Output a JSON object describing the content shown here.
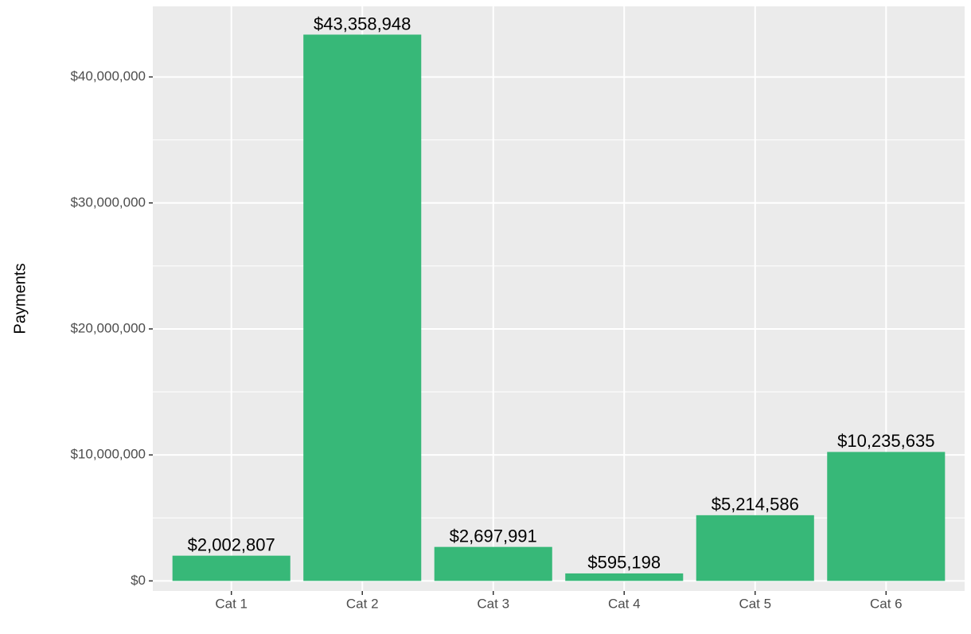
{
  "chart_data": {
    "type": "bar",
    "y_label": "Payments",
    "categories": [
      "Cat 1",
      "Cat 2",
      "Cat 3",
      "Cat 4",
      "Cat 5",
      "Cat 6"
    ],
    "values": [
      2002807,
      43358948,
      2697991,
      595198,
      5214586,
      10235635
    ],
    "value_labels": [
      "$2,002,807",
      "$43,358,948",
      "$2,697,991",
      "$595,198",
      "$5,214,586",
      "$10,235,635"
    ],
    "color": "#37b878",
    "ylim": [
      -800000,
      45600000
    ],
    "yticks": [
      {
        "value": 0,
        "label": "$0"
      },
      {
        "value": 10000000,
        "label": "$10,000,000"
      },
      {
        "value": 20000000,
        "label": "$20,000,000"
      },
      {
        "value": 30000000,
        "label": "$30,000,000"
      },
      {
        "value": 40000000,
        "label": "$40,000,000"
      }
    ],
    "grid": true
  }
}
